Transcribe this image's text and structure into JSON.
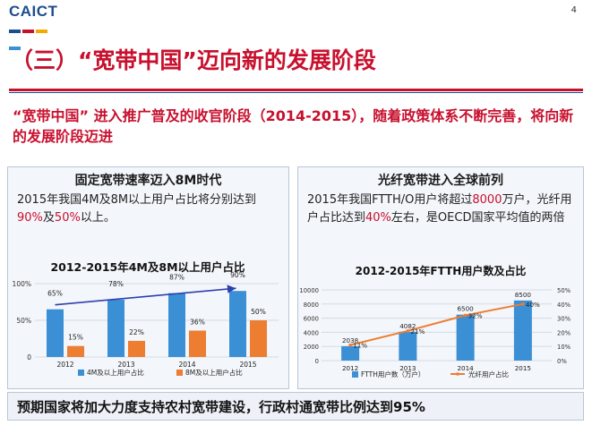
{
  "header": {
    "logo": "CAICT",
    "page_number": "4",
    "title": "（三）“宽带中国”迈向新的发展阶段",
    "subtitle": "“宽带中国” 进入推广普及的收官阶段（2014-2015），随着政策体系不断完善，将向新的发展阶段迈进"
  },
  "left_panel": {
    "title": "固定宽带速率迈入8M时代",
    "text_parts": [
      "2015年我国4M及8M以上用户占比将分别达到",
      "90%",
      "及",
      "50%",
      "以上。"
    ]
  },
  "right_panel": {
    "title": "光纤宽带进入全球前列",
    "text_parts": [
      "2015年我国FTTH/O用户将超过",
      "8000",
      "万户，光纤用户占比达到",
      "40%",
      "左右，是OECD国家平均值的两倍"
    ]
  },
  "footer": {
    "text": "预期国家将加大力度支持农村宽带建设，行政村通宽带比例达到95%"
  },
  "colors": {
    "brand_red": "#c8102e",
    "brand_blue": "#1d4d8c",
    "bar_blue": "#3b8fd4",
    "bar_orange": "#ed7d31",
    "trend_arrow": "#2e3fb0",
    "logo_stripes": [
      "#1d4d8c",
      "#c8102e",
      "#f2a900",
      "#3b8fd4"
    ]
  },
  "chart_data": [
    {
      "type": "bar",
      "title": "2012-2015年4M及8M以上用户占比",
      "categories": [
        "2012",
        "2013",
        "2014",
        "2015"
      ],
      "series": [
        {
          "name": "4M及以上用户占比",
          "values": [
            65,
            78,
            87,
            90
          ],
          "labels": [
            "65%",
            "78%",
            "87%",
            "90%"
          ]
        },
        {
          "name": "8M及以上用户占比",
          "values": [
            15,
            22,
            36,
            50
          ],
          "labels": [
            "15%",
            "22%",
            "36%",
            "50%"
          ]
        }
      ],
      "ylim": [
        0,
        100
      ],
      "yticks": [
        0,
        50,
        100
      ],
      "ytick_labels": [
        "0",
        "50%",
        "100%"
      ],
      "legend": "bottom",
      "annotation": "trend arrow over 4M series"
    },
    {
      "type": "bar",
      "title": "2012-2015年FTTH用户数及占比",
      "categories": [
        "2012",
        "2013",
        "2014",
        "2015"
      ],
      "series": [
        {
          "name": "FTTH用户数（万户）",
          "values": [
            2038,
            4082,
            6500,
            8500
          ],
          "labels": [
            "2038",
            "4082",
            "6500",
            "8500"
          ],
          "axis": "left"
        },
        {
          "name": "光纤用户占比",
          "type": "line",
          "values": [
            11,
            21,
            32,
            40
          ],
          "labels": [
            "11%",
            "21%",
            "32%",
            "40%"
          ],
          "axis": "right"
        }
      ],
      "ylim": [
        0,
        10000
      ],
      "yticks": [
        0,
        2000,
        4000,
        6000,
        8000,
        10000
      ],
      "ytick_labels": [
        "0",
        "2000",
        "4000",
        "6000",
        "8000",
        "10000"
      ],
      "y2lim": [
        0,
        50
      ],
      "y2ticks": [
        0,
        10,
        20,
        30,
        40,
        50
      ],
      "y2tick_labels": [
        "0%",
        "10%",
        "20%",
        "30%",
        "40%",
        "50%"
      ],
      "legend": "bottom"
    }
  ]
}
